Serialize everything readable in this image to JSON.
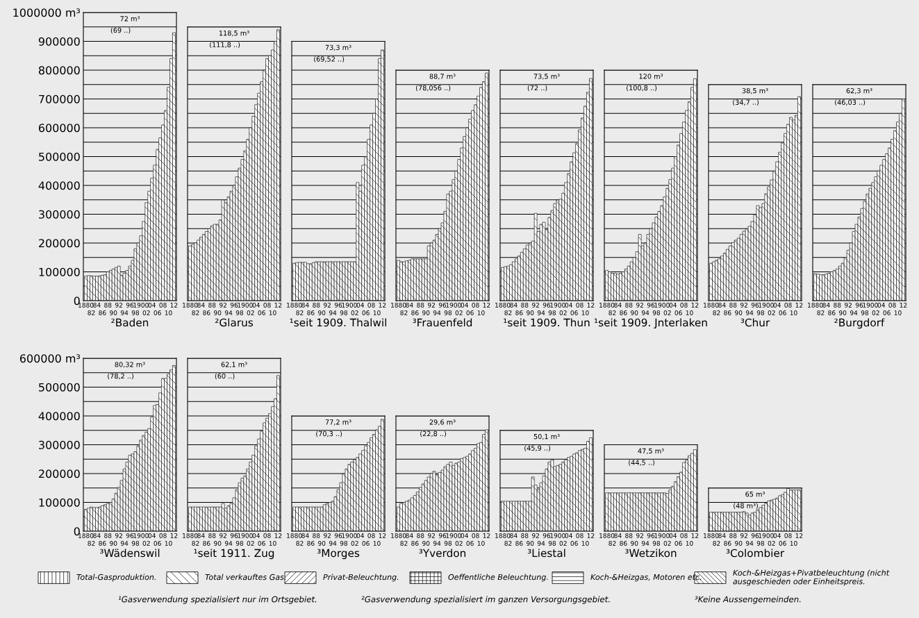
{
  "chart_data": [
    {
      "type": "bar",
      "xlabel": "²Baden",
      "annotations": [
        "72 m³",
        "(69 ..)"
      ],
      "grid": "y",
      "ylim": [
        0,
        1000000
      ],
      "yticks": [
        0,
        {
          "value": 50000,
          "label": null
        },
        100000,
        {
          "value": 150000,
          "label": null
        },
        200000,
        {
          "value": 250000,
          "label": null
        },
        300000,
        {
          "value": 350000,
          "label": null
        },
        400000,
        {
          "value": 450000,
          "label": null
        },
        500000,
        {
          "value": 550000,
          "label": null
        },
        600000,
        {
          "value": 650000,
          "label": null
        },
        700000,
        {
          "value": 750000,
          "label": null
        },
        800000,
        {
          "value": 850000,
          "label": null
        },
        900000,
        {
          "value": 950000,
          "label": null
        },
        {
          "value": 1000000,
          "label": "1000000 m³"
        }
      ],
      "categories": [
        "1880",
        null,
        "82",
        null,
        "84",
        null,
        "86",
        null,
        "88",
        null,
        "90",
        null,
        "92",
        null,
        "94",
        null,
        "96",
        null,
        "98",
        null,
        "1900",
        null,
        "02",
        null,
        "04",
        null,
        "06",
        null,
        "08",
        null,
        "10",
        null,
        "12"
      ],
      "series": [
        {
          "color": "#1a1a1a",
          "values": [
            85000,
            87000,
            86000,
            85000,
            85000,
            86000,
            88000,
            90000,
            100000,
            105000,
            110000,
            115000,
            120000,
            88000,
            95000,
            105000,
            120000,
            140000,
            180000,
            200000,
            225000,
            275000,
            340000,
            380000,
            425000,
            470000,
            525000,
            565000,
            610000,
            660000,
            740000,
            840000,
            930000
          ]
        }
      ]
    },
    {
      "type": "bar",
      "xlabel": "²Glarus",
      "annotations": [
        "118,5 m³",
        "(111,8 ..)"
      ],
      "grid": "y",
      "ylim": [
        0,
        950000
      ],
      "tick_labels": "x",
      "yticks": [
        0,
        50000,
        100000,
        150000,
        200000,
        250000,
        300000,
        350000,
        400000,
        450000,
        500000,
        550000,
        600000,
        650000,
        700000,
        750000,
        800000,
        850000,
        900000,
        950000
      ],
      "categories": [
        "1880",
        null,
        "82",
        null,
        "84",
        null,
        "86",
        null,
        "88",
        null,
        "90",
        null,
        "92",
        null,
        "94",
        null,
        "96",
        null,
        "98",
        null,
        "1900",
        null,
        "02",
        null,
        "04",
        null,
        "06",
        null,
        "08",
        null,
        "10",
        null,
        "12"
      ],
      "series": [
        {
          "color": "#1a1a1a",
          "values": [
            190000,
            195000,
            200000,
            210000,
            220000,
            230000,
            240000,
            250000,
            260000,
            265000,
            265000,
            280000,
            350000,
            340000,
            360000,
            380000,
            400000,
            430000,
            460000,
            490000,
            520000,
            560000,
            600000,
            640000,
            680000,
            720000,
            760000,
            800000,
            840000,
            850000,
            870000,
            900000,
            940000
          ]
        }
      ]
    },
    {
      "type": "bar",
      "xlabel": "¹seit 1909. Thalwil",
      "annotations": [
        "73,3 m³",
        "(69,52 ..)"
      ],
      "grid": "y",
      "ylim": [
        0,
        900000
      ],
      "tick_labels": "x",
      "yticks": [
        0,
        50000,
        100000,
        150000,
        200000,
        250000,
        300000,
        350000,
        400000,
        450000,
        500000,
        550000,
        600000,
        650000,
        700000,
        750000,
        800000,
        850000,
        900000
      ],
      "categories": [
        "1880",
        null,
        "82",
        null,
        "84",
        null,
        "86",
        null,
        "88",
        null,
        "90",
        null,
        "92",
        null,
        "94",
        null,
        "96",
        null,
        "98",
        null,
        "1900",
        null,
        "02",
        null,
        "04",
        null,
        "06",
        null,
        "08",
        null,
        "10",
        null,
        "12"
      ],
      "series": [
        {
          "color": "#1a1a1a",
          "values": [
            130000,
            132000,
            133000,
            133000,
            133000,
            128000,
            128000,
            132000,
            135000,
            135000,
            135000,
            135000,
            135000,
            135000,
            135000,
            135000,
            135000,
            135000,
            135000,
            135000,
            135000,
            135000,
            135000,
            410000,
            380000,
            470000,
            500000,
            560000,
            610000,
            650000,
            700000,
            840000,
            870000
          ]
        }
      ]
    },
    {
      "type": "bar",
      "xlabel": "³Frauenfeld",
      "annotations": [
        "88,7 m³",
        "(78,056 ..)"
      ],
      "grid": "y",
      "ylim": [
        0,
        800000
      ],
      "tick_labels": "x",
      "yticks": [
        0,
        50000,
        100000,
        150000,
        200000,
        250000,
        300000,
        350000,
        400000,
        450000,
        500000,
        550000,
        600000,
        650000,
        700000,
        750000,
        800000
      ],
      "categories": [
        "1880",
        null,
        "82",
        null,
        "84",
        null,
        "86",
        null,
        "88",
        null,
        "90",
        null,
        "92",
        null,
        "94",
        null,
        "96",
        null,
        "98",
        null,
        "1900",
        null,
        "02",
        null,
        "04",
        null,
        "06",
        null,
        "08",
        null,
        "10",
        null,
        "12"
      ],
      "series": [
        {
          "color": "#1a1a1a",
          "values": [
            140000,
            135000,
            135000,
            138000,
            140000,
            145000,
            145000,
            145000,
            145000,
            145000,
            145000,
            190000,
            200000,
            210000,
            230000,
            250000,
            270000,
            310000,
            370000,
            380000,
            420000,
            450000,
            490000,
            530000,
            570000,
            600000,
            630000,
            660000,
            680000,
            710000,
            740000,
            760000,
            790000
          ]
        }
      ]
    },
    {
      "type": "bar",
      "xlabel": "¹seit 1909. Thun",
      "annotations": [
        "73,5 m³",
        "(72 ..)"
      ],
      "grid": "y",
      "ylim": [
        0,
        800000
      ],
      "tick_labels": "x",
      "yticks": [
        0,
        50000,
        100000,
        150000,
        200000,
        250000,
        300000,
        350000,
        400000,
        450000,
        500000,
        550000,
        600000,
        650000,
        700000,
        750000,
        800000
      ],
      "categories": [
        "1880",
        null,
        "82",
        null,
        "84",
        null,
        "86",
        null,
        "88",
        null,
        "90",
        null,
        "92",
        null,
        "94",
        null,
        "96",
        null,
        "98",
        null,
        "1900",
        null,
        "02",
        null,
        "04",
        null,
        "06",
        null,
        "08",
        null,
        "10",
        null,
        "12"
      ],
      "series": [
        {
          "color": "#1a1a1a",
          "values": [
            115000,
            118000,
            120000,
            125000,
            135000,
            145000,
            155000,
            168000,
            180000,
            193000,
            200000,
            207000,
            303000,
            240000,
            265000,
            272000,
            248000,
            289000,
            313000,
            337000,
            349000,
            352000,
            373000,
            410000,
            441000,
            482000,
            513000,
            545000,
            593000,
            634000,
            675000,
            723000,
            771000
          ]
        }
      ]
    },
    {
      "type": "bar",
      "xlabel": "¹seit 1909. Jnterlaken",
      "annotations": [
        "120 m³",
        "(100,8 ..)"
      ],
      "grid": "y",
      "ylim": [
        0,
        800000
      ],
      "tick_labels": "x",
      "yticks": [
        0,
        50000,
        100000,
        150000,
        200000,
        250000,
        300000,
        350000,
        400000,
        450000,
        500000,
        550000,
        600000,
        650000,
        700000,
        750000,
        800000
      ],
      "categories": [
        "1880",
        null,
        "82",
        null,
        "84",
        null,
        "86",
        null,
        "88",
        null,
        "90",
        null,
        "92",
        null,
        "94",
        null,
        "96",
        null,
        "98",
        null,
        "1900",
        null,
        "02",
        null,
        "04",
        null,
        "06",
        null,
        "08",
        null,
        "10",
        null,
        "12"
      ],
      "series": [
        {
          "color": "#1a1a1a",
          "values": [
            105000,
            100000,
            95000,
            95000,
            92000,
            95000,
            100000,
            110000,
            120000,
            135000,
            150000,
            170000,
            230000,
            190000,
            200000,
            230000,
            250000,
            270000,
            290000,
            310000,
            330000,
            360000,
            390000,
            420000,
            460000,
            500000,
            540000,
            580000,
            620000,
            660000,
            690000,
            740000,
            770000
          ]
        }
      ]
    },
    {
      "type": "bar",
      "xlabel": "³Chur",
      "annotations": [
        "38,5 m³",
        "(34,7 ..)"
      ],
      "grid": "y",
      "ylim": [
        0,
        750000
      ],
      "tick_labels": "x",
      "yticks": [
        0,
        50000,
        100000,
        150000,
        200000,
        250000,
        300000,
        350000,
        400000,
        450000,
        500000,
        550000,
        600000,
        650000,
        700000,
        750000
      ],
      "categories": [
        "1880",
        null,
        "82",
        null,
        "84",
        null,
        "86",
        null,
        "88",
        null,
        "90",
        null,
        "92",
        null,
        "94",
        null,
        "96",
        null,
        "98",
        null,
        "1900",
        null,
        "02",
        null,
        "04",
        null,
        "06",
        null,
        "08",
        null,
        "10",
        null,
        "12"
      ],
      "series": [
        {
          "color": "#1a1a1a",
          "values": [
            130000,
            135000,
            140000,
            145000,
            155000,
            165000,
            178000,
            190000,
            202000,
            210000,
            217000,
            230000,
            241000,
            250000,
            258000,
            275000,
            299000,
            330000,
            323000,
            337000,
            371000,
            395000,
            419000,
            450000,
            482000,
            515000,
            547000,
            580000,
            612000,
            636000,
            627000,
            643000,
            708000
          ]
        }
      ]
    },
    {
      "type": "bar",
      "xlabel": "²Burgdorf",
      "annotations": [
        "62,3 m³",
        "(46,03 ..)"
      ],
      "grid": "y",
      "ylim": [
        0,
        750000
      ],
      "tick_labels": "x",
      "yticks": [
        0,
        50000,
        100000,
        150000,
        200000,
        250000,
        300000,
        350000,
        400000,
        450000,
        500000,
        550000,
        600000,
        650000,
        700000,
        750000
      ],
      "categories": [
        "1880",
        null,
        "82",
        null,
        "84",
        null,
        "86",
        null,
        "88",
        null,
        "90",
        null,
        "92",
        null,
        "94",
        null,
        "96",
        null,
        "98",
        null,
        "1900",
        null,
        "02",
        null,
        "04",
        null,
        "06",
        null,
        "08",
        null,
        "10",
        null,
        "12"
      ],
      "series": [
        {
          "color": "#1a1a1a",
          "values": [
            94000,
            92000,
            90000,
            90000,
            92000,
            95000,
            100000,
            105000,
            110000,
            120000,
            130000,
            150000,
            175000,
            200000,
            240000,
            265000,
            290000,
            320000,
            345000,
            370000,
            390000,
            410000,
            430000,
            450000,
            470000,
            490000,
            510000,
            530000,
            560000,
            590000,
            620000,
            650000,
            700000
          ]
        }
      ]
    },
    {
      "type": "bar",
      "xlabel": "³Wädenswil",
      "annotations": [
        "80,32 m³",
        "(78,2 ..)"
      ],
      "grid": "y",
      "ylim": [
        0,
        600000
      ],
      "yticks": [
        0,
        {
          "value": 50000,
          "label": null
        },
        100000,
        {
          "value": 150000,
          "label": null
        },
        200000,
        {
          "value": 250000,
          "label": null
        },
        300000,
        {
          "value": 350000,
          "label": null
        },
        400000,
        {
          "value": 450000,
          "label": null
        },
        500000,
        {
          "value": 550000,
          "label": null
        },
        {
          "value": 600000,
          "label": "600000 m³"
        }
      ],
      "categories": [
        "1880",
        null,
        "82",
        null,
        "84",
        null,
        "86",
        null,
        "88",
        null,
        "90",
        null,
        "92",
        null,
        "94",
        null,
        "96",
        null,
        "98",
        null,
        "1900",
        null,
        "02",
        null,
        "04",
        null,
        "06",
        null,
        "08",
        null,
        "10",
        null,
        "12"
      ],
      "series": [
        {
          "color": "#1a1a1a",
          "values": [
            76000,
            80000,
            84000,
            82000,
            82000,
            84000,
            88000,
            92000,
            96000,
            100000,
            112000,
            132000,
            152000,
            176000,
            216000,
            240000,
            264000,
            268000,
            276000,
            296000,
            316000,
            332000,
            344000,
            356000,
            396000,
            436000,
            440000,
            480000,
            530000,
            530000,
            545000,
            560000,
            575000
          ]
        }
      ]
    },
    {
      "type": "bar",
      "xlabel": "¹seit 1911. Zug",
      "annotations": [
        "62,1 m³",
        "(60 ..)"
      ],
      "grid": "y",
      "ylim": [
        0,
        600000
      ],
      "tick_labels": "x",
      "yticks": [
        0,
        50000,
        100000,
        150000,
        200000,
        250000,
        300000,
        350000,
        400000,
        450000,
        500000,
        550000,
        600000
      ],
      "categories": [
        "1880",
        null,
        "82",
        null,
        "84",
        null,
        "86",
        null,
        "88",
        null,
        "90",
        null,
        "92",
        null,
        "94",
        null,
        "96",
        null,
        "98",
        null,
        "1900",
        null,
        "02",
        null,
        "04",
        null,
        "06",
        null,
        "08",
        null,
        "10",
        null,
        "12"
      ],
      "series": [
        {
          "color": "#1a1a1a",
          "values": [
            84000,
            84000,
            84000,
            84000,
            84000,
            84000,
            84000,
            84000,
            84000,
            84000,
            84000,
            84000,
            96000,
            80000,
            88000,
            96000,
            116000,
            144000,
            168000,
            184000,
            192000,
            216000,
            240000,
            264000,
            296000,
            320000,
            348000,
            376000,
            392000,
            408000,
            432000,
            460000,
            540000
          ]
        }
      ]
    },
    {
      "type": "bar",
      "xlabel": "³Morges",
      "annotations": [
        "77,2 m³",
        "(70,3 ..)"
      ],
      "grid": "y",
      "ylim": [
        0,
        400000
      ],
      "tick_labels": "x",
      "yticks": [
        0,
        50000,
        100000,
        150000,
        200000,
        250000,
        300000,
        350000,
        400000
      ],
      "categories": [
        "1880",
        null,
        "82",
        null,
        "84",
        null,
        "86",
        null,
        "88",
        null,
        "90",
        null,
        "92",
        null,
        "94",
        null,
        "96",
        null,
        "98",
        null,
        "1900",
        null,
        "02",
        null,
        "04",
        null,
        "06",
        null,
        "08",
        null,
        "10",
        null,
        "12"
      ],
      "series": [
        {
          "color": "#1a1a1a",
          "values": [
            84000,
            84000,
            84000,
            84000,
            84000,
            84000,
            84000,
            84000,
            84000,
            84000,
            84000,
            92000,
            96000,
            100000,
            104000,
            120000,
            144000,
            168000,
            200000,
            216000,
            232000,
            240000,
            248000,
            256000,
            268000,
            280000,
            296000,
            308000,
            324000,
            336000,
            352000,
            364000,
            388000
          ]
        }
      ]
    },
    {
      "type": "bar",
      "xlabel": "³Yverdon",
      "annotations": [
        "29,6 m³",
        "(22,8 ..)"
      ],
      "grid": "y",
      "ylim": [
        0,
        400000
      ],
      "tick_labels": "x",
      "yticks": [
        0,
        50000,
        100000,
        150000,
        200000,
        250000,
        300000,
        350000,
        400000
      ],
      "categories": [
        "1880",
        null,
        "82",
        null,
        "84",
        null,
        "86",
        null,
        "88",
        null,
        "90",
        null,
        "92",
        null,
        "94",
        null,
        "96",
        null,
        "98",
        null,
        "1900",
        null,
        "02",
        null,
        "04",
        null,
        "06",
        null,
        "08",
        null,
        "10",
        null,
        "12"
      ],
      "series": [
        {
          "color": "#1a1a1a",
          "values": [
            84000,
            96000,
            100000,
            104000,
            108000,
            116000,
            124000,
            136000,
            152000,
            164000,
            176000,
            188000,
            200000,
            208000,
            196000,
            204000,
            212000,
            224000,
            232000,
            240000,
            228000,
            236000,
            240000,
            252000,
            256000,
            260000,
            268000,
            280000,
            288000,
            304000,
            308000,
            336000,
            352000
          ]
        }
      ]
    },
    {
      "type": "bar",
      "xlabel": "³Liestal",
      "annotations": [
        "50,1 m³",
        "(45,9 ..)"
      ],
      "grid": "y",
      "ylim": [
        0,
        350000
      ],
      "tick_labels": "x",
      "yticks": [
        0,
        50000,
        100000,
        150000,
        200000,
        250000,
        300000,
        350000
      ],
      "categories": [
        "1880",
        null,
        "82",
        null,
        "84",
        null,
        "86",
        null,
        "88",
        null,
        "90",
        null,
        "92",
        null,
        "94",
        null,
        "96",
        null,
        "98",
        null,
        "1900",
        null,
        "02",
        null,
        "04",
        null,
        "06",
        null,
        "08",
        null,
        "10",
        null,
        "12"
      ],
      "series": [
        {
          "color": "#1a1a1a",
          "values": [
            104000,
            104000,
            104000,
            104000,
            104000,
            104000,
            104000,
            104000,
            104000,
            104000,
            104000,
            188000,
            160000,
            144000,
            168000,
            192000,
            216000,
            240000,
            248000,
            224000,
            228000,
            232000,
            240000,
            248000,
            256000,
            260000,
            268000,
            272000,
            280000,
            284000,
            288000,
            312000,
            324000
          ]
        }
      ]
    },
    {
      "type": "bar",
      "xlabel": "³Wetzikon",
      "annotations": [
        "47,5 m³",
        "(44,5 ..)"
      ],
      "grid": "y",
      "ylim": [
        0,
        300000
      ],
      "tick_labels": "x",
      "yticks": [
        0,
        50000,
        100000,
        150000,
        200000,
        250000,
        300000
      ],
      "categories": [
        "1880",
        null,
        "82",
        null,
        "84",
        null,
        "86",
        null,
        "88",
        null,
        "90",
        null,
        "92",
        null,
        "94",
        null,
        "96",
        null,
        "98",
        null,
        "1900",
        null,
        "02",
        null,
        "04",
        null,
        "06",
        null,
        "08",
        null,
        "10",
        null,
        "12"
      ],
      "series": [
        {
          "color": "#1a1a1a",
          "values": [
            133000,
            133000,
            133000,
            133000,
            133000,
            133000,
            133000,
            133000,
            133000,
            133000,
            133000,
            133000,
            133000,
            133000,
            133000,
            133000,
            133000,
            133000,
            133000,
            133000,
            133000,
            133000,
            131000,
            143000,
            156000,
            172000,
            189000,
            205000,
            238000,
            246000,
            262000,
            270000,
            283000
          ]
        }
      ]
    },
    {
      "type": "bar",
      "xlabel": "³Colombier",
      "annotations": [
        "65 m³",
        "(48 m³)"
      ],
      "grid": "y",
      "ylim": [
        0,
        150000
      ],
      "tick_labels": "x",
      "yticks": [
        0,
        50000,
        100000,
        150000
      ],
      "categories": [
        "1880",
        null,
        "82",
        null,
        "84",
        null,
        "86",
        null,
        "88",
        null,
        "90",
        null,
        "92",
        null,
        "94",
        null,
        "96",
        null,
        "98",
        null,
        "1900",
        null,
        "02",
        null,
        "04",
        null,
        "06",
        null,
        "08",
        null,
        "10",
        null,
        "12"
      ],
      "series": [
        {
          "color": "#1a1a1a",
          "values": [
            66000,
            66000,
            66000,
            66000,
            66000,
            66000,
            66000,
            66000,
            66000,
            66000,
            66000,
            66000,
            68000,
            63000,
            56000,
            63000,
            66000,
            74000,
            82000,
            90000,
            98000,
            105000,
            108000,
            111000,
            115000,
            123000,
            127000,
            135000,
            148000,
            143000,
            143000,
            143000,
            143000
          ]
        }
      ]
    },
    {
      "type": "other",
      "annotations": [
        "Total-Gasproduktion.",
        "Total verkauftes Gas.",
        "Privat-Beleuchtung.",
        "Oeffentliche Beleuchtung.",
        "Koch-&Heizgas, Motoren etc.",
        "Koch-&Heizgas+Pivatbeleuchtung (nicht ausgeschieden oder Einheitspreis."
      ]
    },
    {
      "type": "other",
      "annotations": [
        "¹Gasverwendung spezialisiert nur im Ortsgebiet.",
        "²Gasverwendung spezialisiert im ganzen Versorgungsgebiet.",
        "³Keine Aussengemeinden."
      ]
    }
  ]
}
